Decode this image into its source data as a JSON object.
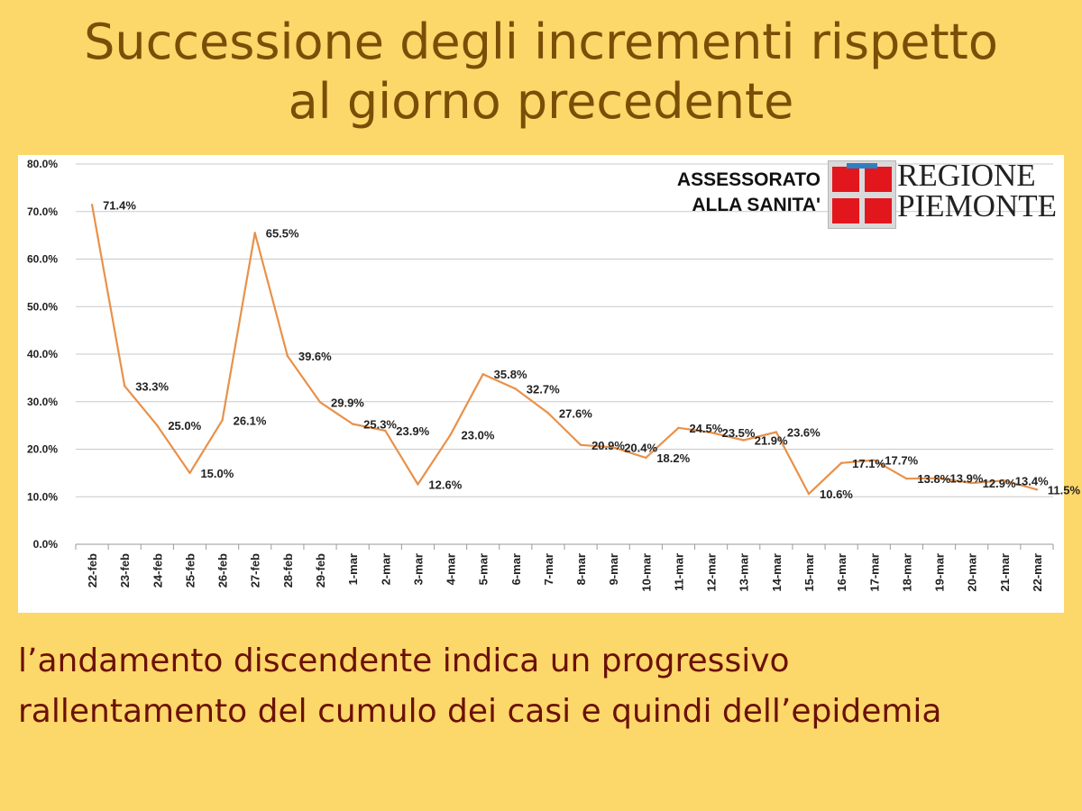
{
  "title": {
    "line1": "Successione degli incrementi rispetto",
    "line2": "al giorno precedente"
  },
  "logo": {
    "assessorato_line1": "ASSESSORATO",
    "assessorato_line2": "ALLA SANITA'",
    "region_line1": "REGIONE",
    "region_line2": "PIEMONTE",
    "shield_colors": {
      "field": "#d9d9d9",
      "cross": "#e2161d",
      "label": "#2f7fc1"
    }
  },
  "caption": {
    "line1": "l’andamento discendente indica un progressivo",
    "line2": "rallentamento del cumulo dei casi e quindi dell’epidemia"
  },
  "chart_data": {
    "type": "line",
    "title": "",
    "xlabel": "",
    "ylabel": "",
    "ylim": [
      0,
      80
    ],
    "yticks": [
      "0.0%",
      "10.0%",
      "20.0%",
      "30.0%",
      "40.0%",
      "50.0%",
      "60.0%",
      "70.0%",
      "80.0%"
    ],
    "grid": true,
    "legend": "none",
    "line_color": "#e8914a",
    "categories": [
      "22-feb",
      "23-feb",
      "24-feb",
      "25-feb",
      "26-feb",
      "27-feb",
      "28-feb",
      "29-feb",
      "1-mar",
      "2-mar",
      "3-mar",
      "4-mar",
      "5-mar",
      "6-mar",
      "7-mar",
      "8-mar",
      "9-mar",
      "10-mar",
      "11-mar",
      "12-mar",
      "13-mar",
      "14-mar",
      "15-mar",
      "16-mar",
      "17-mar",
      "18-mar",
      "19-mar",
      "20-mar",
      "21-mar",
      "22-mar"
    ],
    "values": [
      71.4,
      33.3,
      25.0,
      15.0,
      26.1,
      65.5,
      39.6,
      29.9,
      25.3,
      23.9,
      12.6,
      23.0,
      35.8,
      32.7,
      27.6,
      20.9,
      20.4,
      18.2,
      24.5,
      23.5,
      21.9,
      23.6,
      10.6,
      17.1,
      17.7,
      13.8,
      13.9,
      12.9,
      13.4,
      11.5
    ],
    "data_labels": [
      "71.4%",
      "33.3%",
      "25.0%",
      "15.0%",
      "26.1%",
      "65.5%",
      "39.6%",
      "29.9%",
      "25.3%",
      "23.9%",
      "12.6%",
      "23.0%",
      "35.8%",
      "32.7%",
      "27.6%",
      "20.9%",
      "20.4%",
      "18.2%",
      "24.5%",
      "23.5%",
      "21.9%",
      "23.6%",
      "10.6%",
      "17.1%",
      "17.7%",
      "13.8%",
      "13.9%",
      "12.9%",
      "13.4%",
      "11.5%"
    ]
  }
}
